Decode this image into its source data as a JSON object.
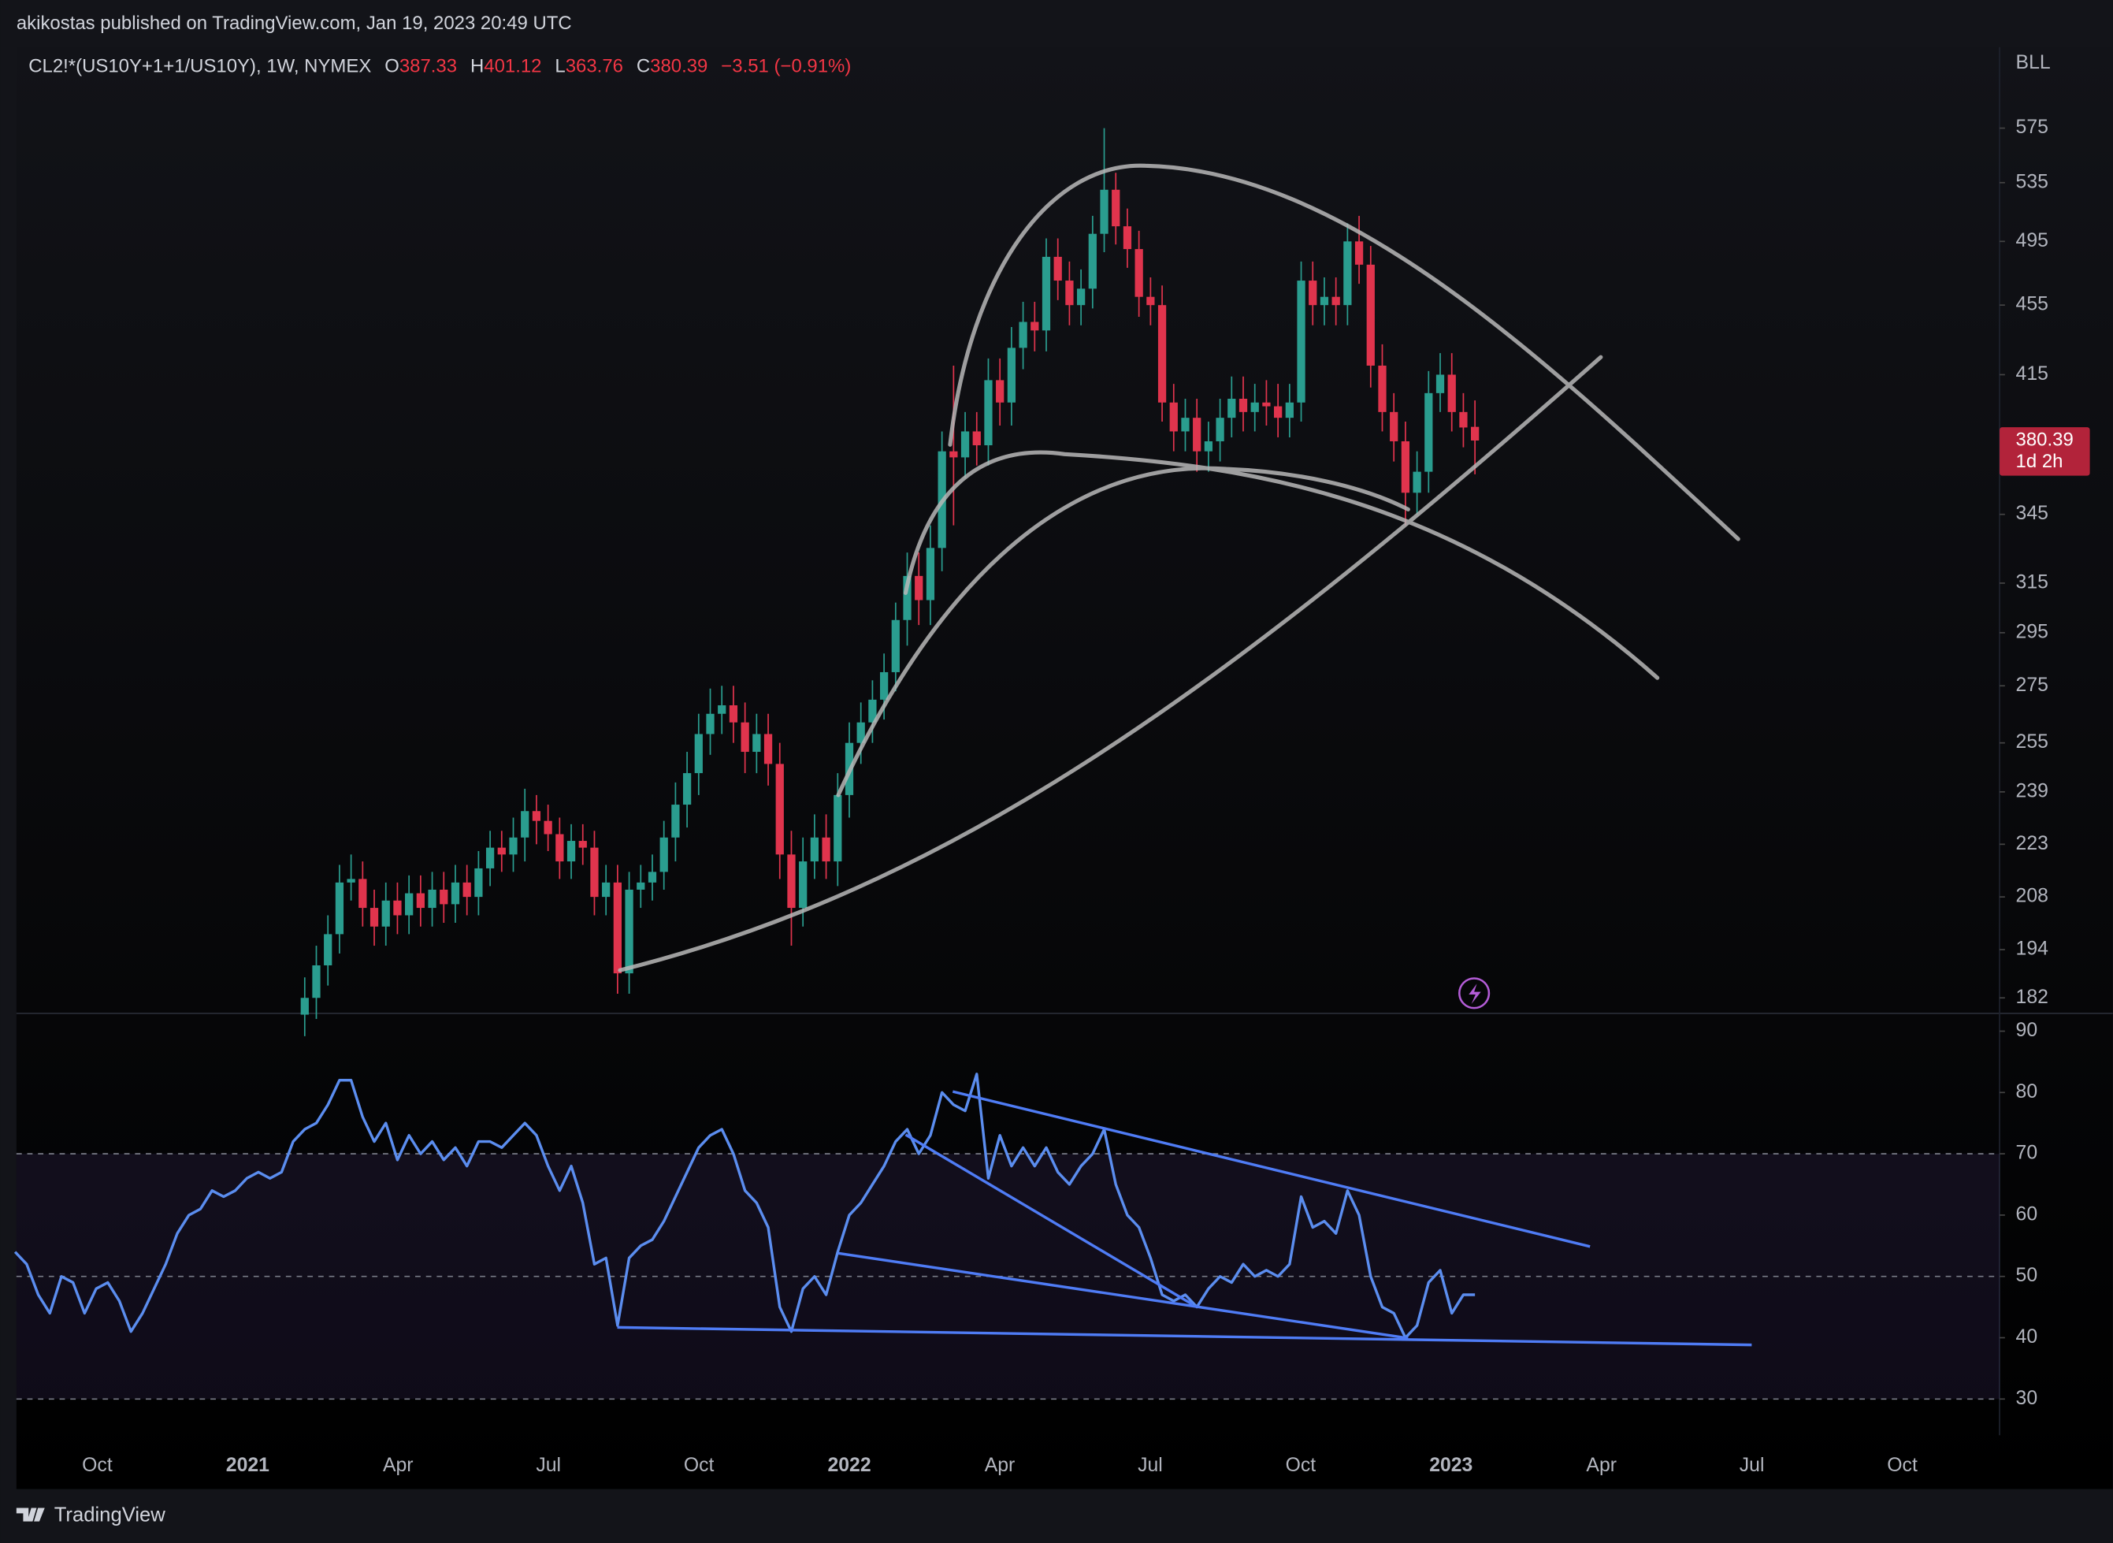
{
  "header": {
    "publisher": "akikostas published on TradingView.com, Jan 19, 2023 20:49 UTC",
    "brand": "TradingView"
  },
  "chart_data": [
    {
      "type": "candlestick",
      "title": "CL2!*(US10Y+1+1/US10Y), 1W, NYMEX",
      "ohlc_labels": [
        "O",
        "H",
        "L",
        "C"
      ],
      "change_label": "−3.51 (−0.91%)",
      "currency": "BLL",
      "countdown": "1d 2h",
      "log_scale": true,
      "up_color": "#2a9d8f",
      "down_color": "#e0344d",
      "ylim": [
        178.3,
        640
      ],
      "yticks": [
        182,
        194,
        208,
        223,
        239,
        255,
        275,
        295,
        315,
        345,
        415,
        455,
        495,
        535,
        575
      ],
      "xticks": [
        "Oct",
        "2021",
        "Apr",
        "Jul",
        "Oct",
        "2022",
        "Apr",
        "Jul",
        "Oct",
        "2023",
        "Apr",
        "Jul",
        "Oct"
      ],
      "open": [
        178,
        182,
        190,
        198,
        212,
        213,
        205,
        200,
        207,
        203,
        209,
        205,
        210,
        206,
        212,
        208,
        216,
        222,
        220,
        225,
        233,
        230,
        226,
        218,
        224,
        222,
        208,
        212,
        188,
        210,
        212,
        215,
        225,
        235,
        245,
        258,
        265,
        268,
        262,
        252,
        258,
        248,
        220,
        205,
        218,
        225,
        218,
        238,
        255,
        262,
        270,
        280,
        300,
        318,
        308,
        330,
        375,
        372,
        385,
        378,
        412,
        400,
        430,
        445,
        440,
        485,
        470,
        455,
        465,
        500,
        530,
        505,
        490,
        460,
        455,
        400,
        385,
        392,
        375,
        380,
        392,
        402,
        395,
        400,
        398,
        392,
        400,
        470,
        455,
        460,
        455,
        495,
        480,
        420,
        395,
        380,
        355,
        365,
        405,
        415,
        395,
        387.33
      ],
      "high": [
        187,
        195,
        203,
        217,
        220,
        218,
        210,
        212,
        212,
        214,
        214,
        215,
        215,
        217,
        217,
        221,
        227,
        227,
        231,
        240,
        238,
        235,
        231,
        229,
        229,
        227,
        217,
        217,
        215,
        217,
        220,
        230,
        242,
        252,
        265,
        274,
        275,
        275,
        269,
        265,
        265,
        255,
        227,
        225,
        232,
        232,
        245,
        262,
        269,
        277,
        287,
        307,
        328,
        328,
        340,
        385,
        420,
        395,
        395,
        424,
        424,
        442,
        457,
        457,
        497,
        497,
        482,
        477,
        512,
        575,
        542,
        517,
        502,
        472,
        467,
        410,
        402,
        402,
        390,
        402,
        414,
        414,
        410,
        412,
        410,
        410,
        482,
        482,
        472,
        472,
        507,
        512,
        492,
        432,
        405,
        390,
        375,
        417,
        427,
        427,
        405,
        401.12
      ],
      "low": [
        173,
        177,
        185,
        193,
        207,
        200,
        195,
        195,
        198,
        198,
        200,
        200,
        201,
        201,
        203,
        203,
        211,
        215,
        215,
        218,
        223,
        221,
        213,
        213,
        217,
        203,
        203,
        183,
        183,
        205,
        207,
        210,
        218,
        228,
        238,
        251,
        258,
        255,
        245,
        245,
        241,
        213,
        195,
        200,
        213,
        213,
        211,
        231,
        248,
        255,
        263,
        273,
        290,
        298,
        298,
        320,
        340,
        362,
        368,
        368,
        388,
        388,
        418,
        428,
        428,
        458,
        443,
        443,
        453,
        488,
        493,
        478,
        448,
        443,
        390,
        375,
        375,
        365,
        365,
        370,
        382,
        385,
        385,
        388,
        382,
        382,
        390,
        443,
        443,
        443,
        443,
        468,
        408,
        385,
        370,
        340,
        345,
        355,
        395,
        385,
        377,
        363.76
      ],
      "close": [
        182,
        190,
        198,
        212,
        213,
        205,
        200,
        207,
        203,
        209,
        205,
        210,
        206,
        212,
        208,
        216,
        222,
        220,
        225,
        233,
        230,
        226,
        218,
        224,
        222,
        208,
        212,
        188,
        210,
        212,
        215,
        225,
        235,
        245,
        258,
        265,
        268,
        262,
        252,
        258,
        248,
        220,
        205,
        218,
        225,
        218,
        238,
        255,
        262,
        270,
        280,
        300,
        318,
        308,
        330,
        375,
        372,
        385,
        378,
        412,
        400,
        430,
        445,
        440,
        485,
        470,
        455,
        465,
        500,
        530,
        505,
        490,
        460,
        455,
        400,
        385,
        392,
        375,
        380,
        392,
        402,
        395,
        400,
        398,
        392,
        400,
        470,
        455,
        460,
        455,
        495,
        480,
        420,
        395,
        380,
        355,
        365,
        405,
        415,
        395,
        387,
        380.39
      ]
    },
    {
      "type": "line",
      "color": "#5b8def",
      "ylim": [
        24.1,
        92.9
      ],
      "yticks": [
        30,
        40,
        50,
        60,
        70,
        80,
        90
      ],
      "levels": [
        30,
        50,
        70
      ],
      "values": [
        54,
        52,
        47,
        44,
        50,
        49,
        44,
        48,
        49,
        46,
        41,
        44,
        48,
        52,
        57,
        60,
        61,
        64,
        63,
        64,
        66,
        67,
        66,
        67,
        72,
        74,
        75,
        78,
        82,
        82,
        76,
        72,
        75,
        69,
        73,
        70,
        72,
        69,
        71,
        68,
        72,
        72,
        71,
        73,
        75,
        73,
        68,
        64,
        68,
        62,
        52,
        53,
        42,
        53,
        55,
        56,
        59,
        63,
        67,
        71,
        73,
        74,
        70,
        64,
        62,
        58,
        45,
        41,
        48,
        50,
        47,
        54,
        60,
        62,
        65,
        68,
        72,
        74,
        70,
        73,
        80,
        78,
        77,
        83,
        66,
        73,
        68,
        71,
        68,
        71,
        67,
        65,
        68,
        70,
        74,
        65,
        60,
        58,
        53,
        47,
        46,
        47,
        45,
        48,
        50,
        49,
        52,
        50,
        51,
        50,
        52,
        63,
        58,
        59,
        57,
        64,
        60,
        50,
        45,
        44,
        40,
        42,
        49,
        51,
        44,
        47,
        47
      ]
    }
  ]
}
